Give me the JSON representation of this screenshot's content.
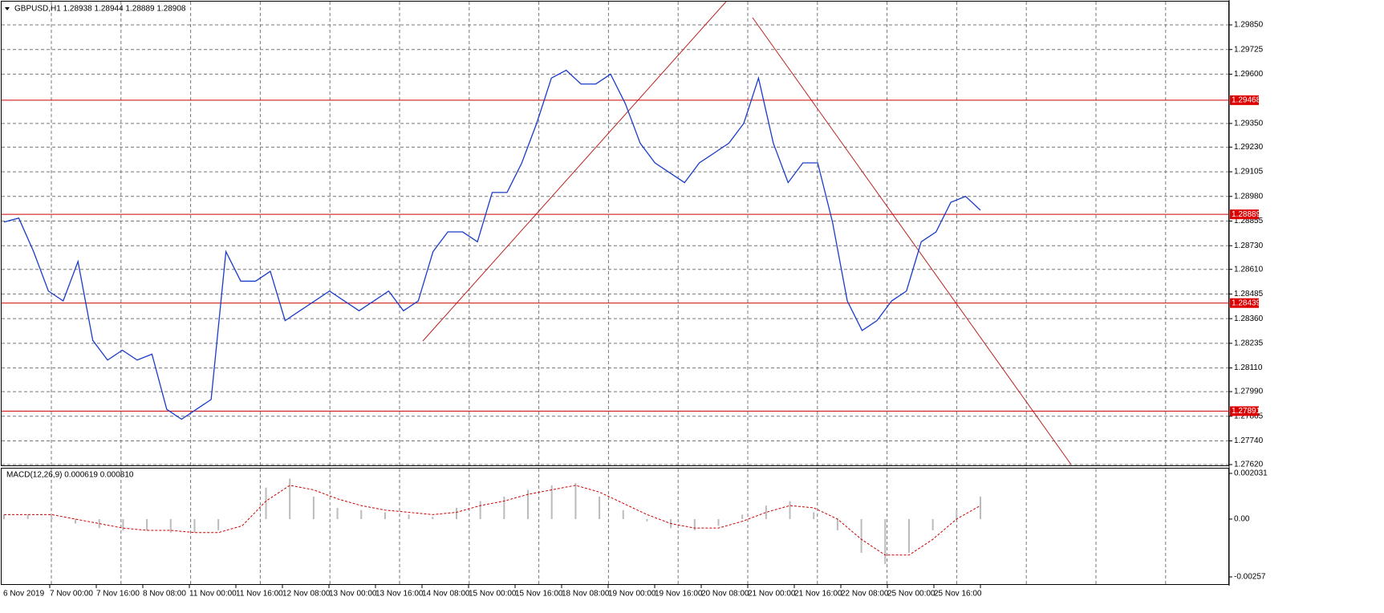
{
  "header": {
    "title": "GBPUSD,H1  1.28938 1.28944 1.28889 1.28908"
  },
  "price_axis": {
    "range": [
      1.2985,
      1.2762
    ],
    "ticks": [
      {
        "value": 1.2985,
        "label": "1.29850"
      },
      {
        "value": 1.29725,
        "label": "1.29725"
      },
      {
        "value": 1.296,
        "label": "1.29600"
      },
      {
        "value": 1.2935,
        "label": "1.29350"
      },
      {
        "value": 1.2923,
        "label": "1.29230"
      },
      {
        "value": 1.29105,
        "label": "1.29105"
      },
      {
        "value": 1.2898,
        "label": "1.28980"
      },
      {
        "value": 1.28855,
        "label": "1.28855"
      },
      {
        "value": 1.2873,
        "label": "1.28730"
      },
      {
        "value": 1.2861,
        "label": "1.28610"
      },
      {
        "value": 1.28485,
        "label": "1.28485"
      },
      {
        "value": 1.2836,
        "label": "1.28360"
      },
      {
        "value": 1.28235,
        "label": "1.28235"
      },
      {
        "value": 1.2811,
        "label": "1.28110"
      },
      {
        "value": 1.2799,
        "label": "1.27990"
      },
      {
        "value": 1.27865,
        "label": "1.27865"
      },
      {
        "value": 1.2774,
        "label": "1.27740"
      },
      {
        "value": 1.2762,
        "label": "1.27620"
      }
    ]
  },
  "levels": [
    {
      "value": 1.29468,
      "label": "1.29468"
    },
    {
      "value": 1.28889,
      "label": "1.28889"
    },
    {
      "value": 1.28439,
      "label": "1.28439"
    },
    {
      "value": 1.27891,
      "label": "1.27891"
    }
  ],
  "closes": [
    1.2885,
    1.2887,
    1.287,
    1.285,
    1.2845,
    1.2865,
    1.2825,
    1.2815,
    1.282,
    1.2815,
    1.2818,
    1.279,
    1.2785,
    1.279,
    1.2795,
    1.287,
    1.2855,
    1.2855,
    1.286,
    1.2835,
    1.284,
    1.2845,
    1.285,
    1.2845,
    1.284,
    1.2845,
    1.285,
    1.284,
    1.2845,
    1.287,
    1.288,
    1.288,
    1.2875,
    1.29,
    1.29,
    1.2915,
    1.2935,
    1.2958,
    1.2962,
    1.2955,
    1.2955,
    1.296,
    1.2945,
    1.2925,
    1.2915,
    1.291,
    1.2905,
    1.2915,
    1.292,
    1.2925,
    1.2935,
    1.2958,
    1.2925,
    1.2905,
    1.2915,
    1.2915,
    1.2885,
    1.2845,
    1.283,
    1.2835,
    1.2845,
    1.285,
    1.2875,
    1.288,
    1.2895,
    1.2898,
    1.2891
  ],
  "time_axis": {
    "labels": [
      "6 Nov 2019",
      "7 Nov 00:00",
      "7 Nov 16:00",
      "8 Nov 08:00",
      "11 Nov 00:00",
      "11 Nov 16:00",
      "12 Nov 08:00",
      "13 Nov 00:00",
      "13 Nov 16:00",
      "14 Nov 08:00",
      "15 Nov 00:00",
      "15 Nov 16:00",
      "18 Nov 08:00",
      "19 Nov 00:00",
      "19 Nov 16:00",
      "20 Nov 08:00",
      "21 Nov 00:00",
      "21 Nov 16:00",
      "22 Nov 08:00",
      "25 Nov 00:00",
      "25 Nov 16:00"
    ]
  },
  "macd": {
    "title": "MACD(12,26,9) 0.000619 0.000810",
    "range": [
      0.002031,
      -0.00257
    ],
    "ticks": [
      {
        "value": 0.002031,
        "label": "0.002031"
      },
      {
        "value": 0,
        "label": "0.00"
      },
      {
        "value": -0.00257,
        "label": "-0.00257"
      }
    ],
    "histogram": [
      0.0002,
      0.0002,
      0.0001,
      -0.0002,
      -0.0004,
      -0.0005,
      -0.0005,
      -0.0006,
      -0.0006,
      -0.0005,
      0,
      0.0014,
      0.0018,
      0.001,
      0.0005,
      0.0004,
      0.0003,
      0.0002,
      0.0001,
      0.0005,
      0.0008,
      0.001,
      0.0013,
      0.0015,
      0.0016,
      0.001,
      0.0004,
      -0.0001,
      -0.0004,
      -0.0005,
      -0.0003,
      0.0002,
      0.0006,
      0.0008,
      0.0003,
      -0.0005,
      -0.0015,
      -0.002,
      -0.0015,
      -0.0005,
      0.0004,
      0.001
    ],
    "signal": [
      0.0002,
      0.0002,
      0.0002,
      0,
      -0.0002,
      -0.0004,
      -0.0005,
      -0.0005,
      -0.0006,
      -0.0006,
      -0.0003,
      0.0008,
      0.0015,
      0.0013,
      0.0009,
      0.0006,
      0.0004,
      0.0003,
      0.0002,
      0.0003,
      0.0006,
      0.0008,
      0.0011,
      0.0013,
      0.0015,
      0.0012,
      0.0007,
      0.0002,
      -0.0002,
      -0.0004,
      -0.0004,
      -0.0001,
      0.0003,
      0.0006,
      0.0005,
      0,
      -0.0009,
      -0.0016,
      -0.0016,
      -0.0009,
      0,
      0.0006
    ]
  }
}
